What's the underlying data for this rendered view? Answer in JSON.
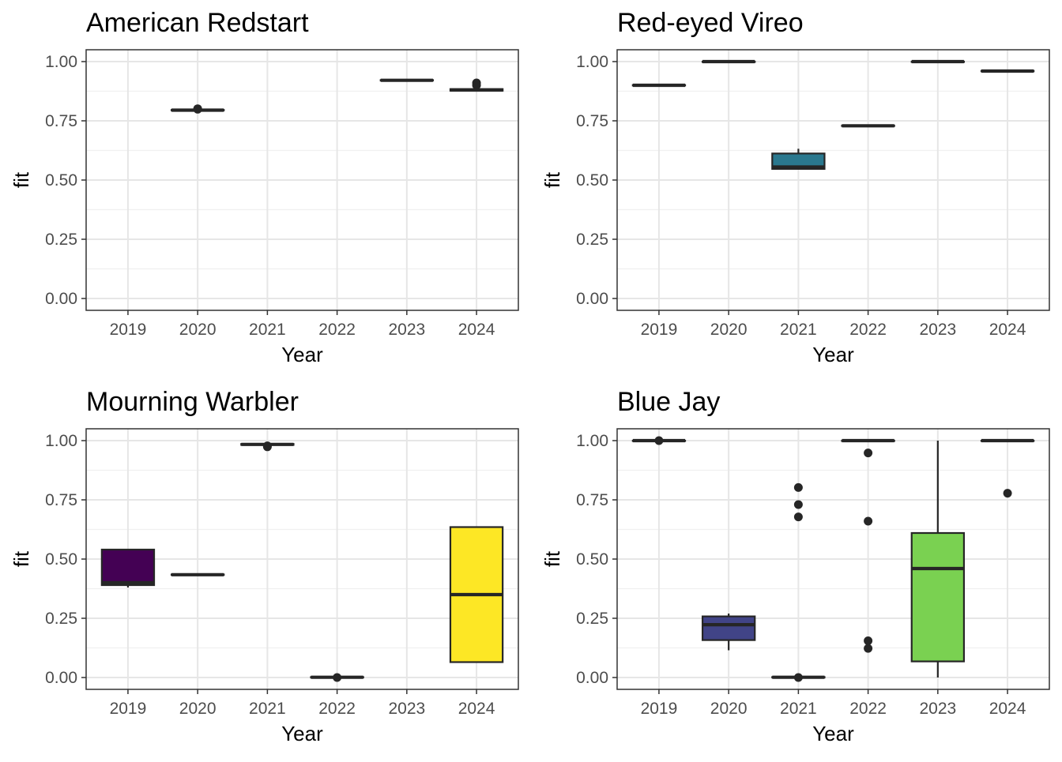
{
  "chart_data": [
    {
      "type": "box",
      "title": "American Redstart",
      "xlabel": "Year",
      "ylabel": "fit",
      "categories": [
        "2019",
        "2020",
        "2021",
        "2022",
        "2023",
        "2024"
      ],
      "ylim": [
        0,
        1
      ],
      "yticks": [
        "0.00",
        "0.25",
        "0.50",
        "0.75",
        "1.00"
      ],
      "grid": true,
      "boxes": [
        {
          "category": "2020",
          "min": 0.793,
          "q1": 0.794,
          "median": 0.795,
          "q3": 0.796,
          "max": 0.797,
          "outliers": [
            0.799,
            0.801
          ],
          "fill": "#482878"
        },
        {
          "category": "2023",
          "min": 0.92,
          "q1": 0.92,
          "median": 0.921,
          "q3": 0.922,
          "max": 0.922,
          "outliers": [],
          "fill": "#5ec962"
        },
        {
          "category": "2024",
          "min": 0.875,
          "q1": 0.877,
          "median": 0.88,
          "q3": 0.884,
          "max": 0.887,
          "outliers": [
            0.9,
            0.91
          ],
          "fill": "#fde725"
        }
      ]
    },
    {
      "type": "box",
      "title": "Red-eyed Vireo",
      "xlabel": "Year",
      "ylabel": "fit",
      "categories": [
        "2019",
        "2020",
        "2021",
        "2022",
        "2023",
        "2024"
      ],
      "ylim": [
        0,
        1
      ],
      "yticks": [
        "0.00",
        "0.25",
        "0.50",
        "0.75",
        "1.00"
      ],
      "grid": true,
      "boxes": [
        {
          "category": "2019",
          "min": 0.898,
          "q1": 0.899,
          "median": 0.9,
          "q3": 0.901,
          "max": 0.902,
          "outliers": [],
          "fill": "#440154"
        },
        {
          "category": "2020",
          "min": 0.998,
          "q1": 0.999,
          "median": 1.0,
          "q3": 1.0,
          "max": 1.0,
          "outliers": [],
          "fill": "#414487"
        },
        {
          "category": "2021",
          "min": 0.545,
          "q1": 0.547,
          "median": 0.555,
          "q3": 0.612,
          "max": 0.632,
          "outliers": [],
          "fill": "#2a788e"
        },
        {
          "category": "2022",
          "min": 0.727,
          "q1": 0.728,
          "median": 0.729,
          "q3": 0.73,
          "max": 0.731,
          "outliers": [],
          "fill": "#22a884"
        },
        {
          "category": "2023",
          "min": 0.998,
          "q1": 0.999,
          "median": 1.0,
          "q3": 1.0,
          "max": 1.0,
          "outliers": [],
          "fill": "#7ad151"
        },
        {
          "category": "2024",
          "min": 0.958,
          "q1": 0.959,
          "median": 0.96,
          "q3": 0.961,
          "max": 0.962,
          "outliers": [],
          "fill": "#fde725"
        }
      ]
    },
    {
      "type": "box",
      "title": "Mourning Warbler",
      "xlabel": "Year",
      "ylabel": "fit",
      "categories": [
        "2019",
        "2020",
        "2021",
        "2022",
        "2023",
        "2024"
      ],
      "ylim": [
        0,
        1
      ],
      "yticks": [
        "0.00",
        "0.25",
        "0.50",
        "0.75",
        "1.00"
      ],
      "grid": true,
      "boxes": [
        {
          "category": "2019",
          "min": 0.38,
          "q1": 0.39,
          "median": 0.4,
          "q3": 0.54,
          "max": 0.54,
          "outliers": [],
          "fill": "#440154"
        },
        {
          "category": "2020",
          "min": 0.432,
          "q1": 0.433,
          "median": 0.434,
          "q3": 0.435,
          "max": 0.436,
          "outliers": [],
          "fill": "#3b528b"
        },
        {
          "category": "2021",
          "min": 0.981,
          "q1": 0.982,
          "median": 0.984,
          "q3": 0.986,
          "max": 0.987,
          "outliers": [
            0.974,
            0.978
          ],
          "fill": "#21918c"
        },
        {
          "category": "2022",
          "min": 0.0,
          "q1": 0.0,
          "median": 0.001,
          "q3": 0.002,
          "max": 0.003,
          "outliers": [
            0.0
          ],
          "fill": "#5ec962"
        },
        {
          "category": "2024",
          "min": 0.065,
          "q1": 0.065,
          "median": 0.35,
          "q3": 0.635,
          "max": 0.635,
          "outliers": [],
          "fill": "#fde725"
        }
      ]
    },
    {
      "type": "box",
      "title": "Blue Jay",
      "xlabel": "Year",
      "ylabel": "fit",
      "categories": [
        "2019",
        "2020",
        "2021",
        "2022",
        "2023",
        "2024"
      ],
      "ylim": [
        0,
        1
      ],
      "yticks": [
        "0.00",
        "0.25",
        "0.50",
        "0.75",
        "1.00"
      ],
      "grid": true,
      "boxes": [
        {
          "category": "2019",
          "min": 0.999,
          "q1": 0.999,
          "median": 1.0,
          "q3": 1.0,
          "max": 1.0,
          "outliers": [
            1.0
          ],
          "fill": "#440154"
        },
        {
          "category": "2020",
          "min": 0.115,
          "q1": 0.158,
          "median": 0.223,
          "q3": 0.258,
          "max": 0.27,
          "outliers": [],
          "fill": "#414487"
        },
        {
          "category": "2021",
          "min": 0.0,
          "q1": 0.0,
          "median": 0.001,
          "q3": 0.002,
          "max": 0.003,
          "outliers": [
            0.0,
            0.678,
            0.73,
            0.802
          ],
          "fill": "#2a788e"
        },
        {
          "category": "2022",
          "min": 0.998,
          "q1": 0.999,
          "median": 1.0,
          "q3": 1.0,
          "max": 1.0,
          "outliers": [
            0.948,
            0.66,
            0.155,
            0.123
          ],
          "fill": "#22a884"
        },
        {
          "category": "2023",
          "min": 0.0,
          "q1": 0.068,
          "median": 0.46,
          "q3": 0.61,
          "max": 1.0,
          "outliers": [],
          "fill": "#7ad151"
        },
        {
          "category": "2024",
          "min": 0.998,
          "q1": 0.999,
          "median": 1.0,
          "q3": 1.0,
          "max": 1.0,
          "outliers": [
            0.778
          ],
          "fill": "#fde725"
        }
      ]
    }
  ]
}
